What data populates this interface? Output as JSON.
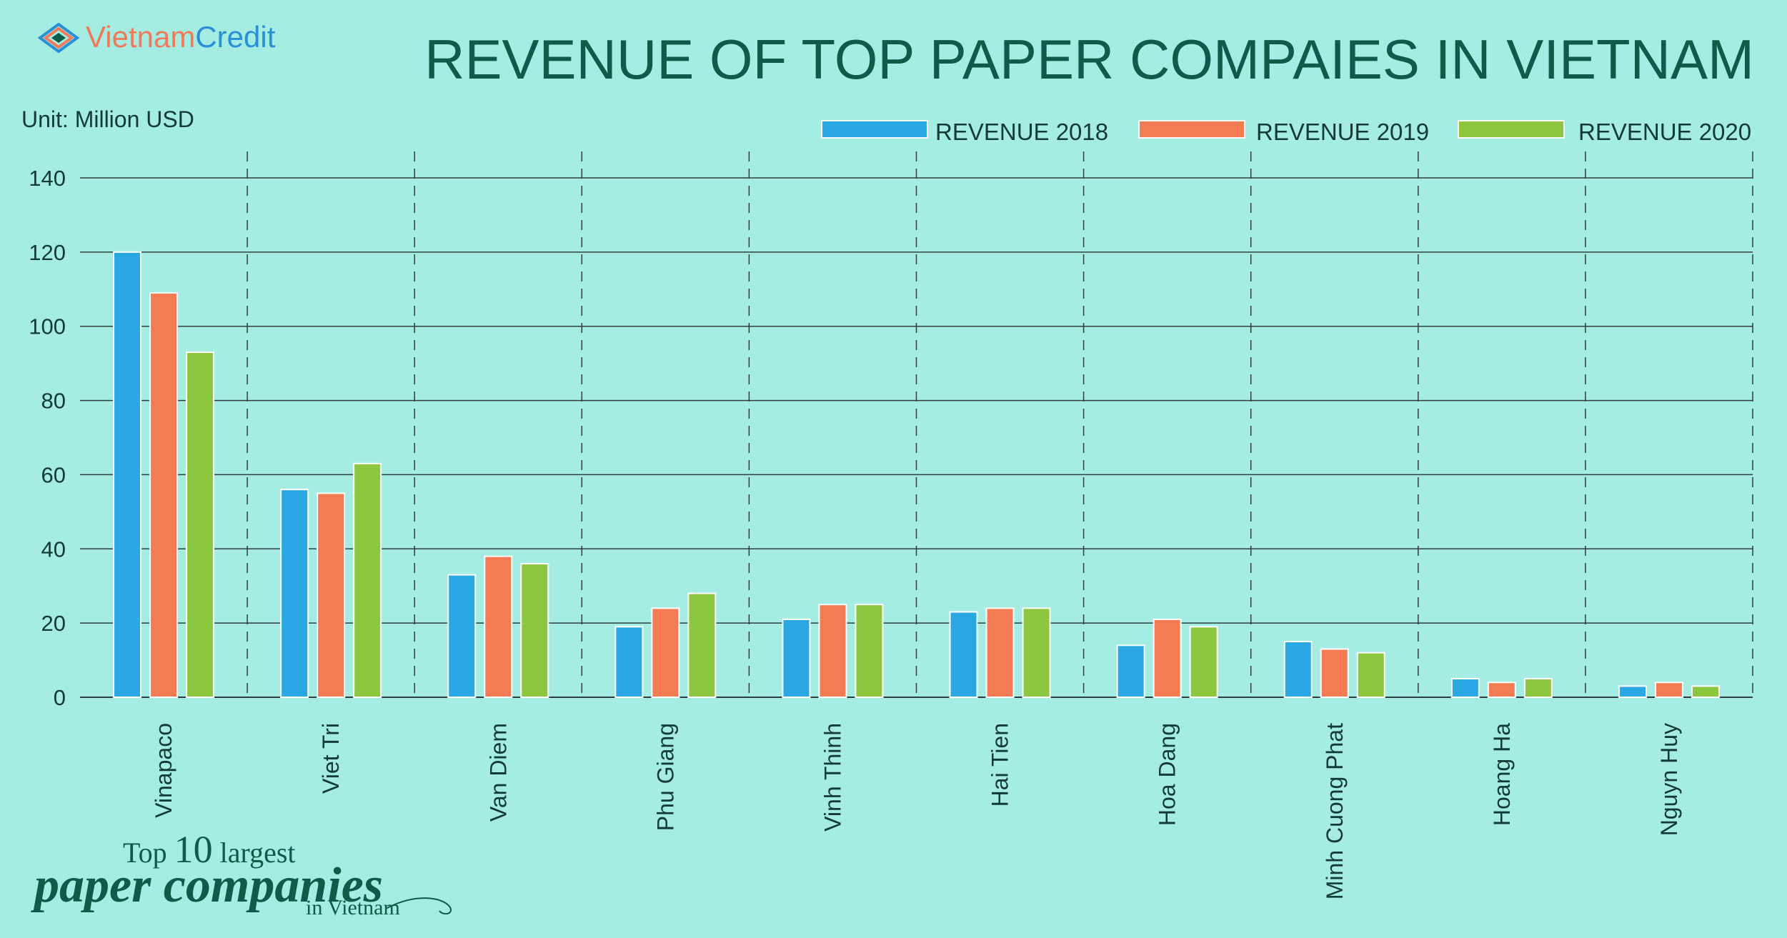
{
  "brand": {
    "name_part1": "Vietnam",
    "name_part2": "Credit",
    "color_dark": "#0f5a49",
    "color_accent": "#f07a5a",
    "color_blue": "#2b8fd6"
  },
  "footer": {
    "line1_a": "Top ",
    "line1_num": "10",
    "line1_b": " largest",
    "line2": "paper companies",
    "line3": "in Vietnam"
  },
  "chart_data": {
    "type": "bar",
    "title": "REVENUE OF TOP PAPER COMPAIES IN VIETNAM",
    "unit_label": "Unit: Million USD",
    "xlabel": "",
    "ylabel": "Million USD",
    "ylim": [
      0,
      140
    ],
    "yticks": [
      0,
      20,
      40,
      60,
      80,
      100,
      120,
      140
    ],
    "grid": true,
    "legend_position": "top-right",
    "categories": [
      "Vinapaco",
      "Viet Tri",
      "Van Diem",
      "Phu Giang",
      "Vinh Thinh",
      "Hai Tien",
      "Hoa Dang",
      "Minh Cuong Phat",
      "Hoang Ha",
      "Nguyn Huy"
    ],
    "series": [
      {
        "name": "REVENUE 2018",
        "color": "#29a8e3",
        "values": [
          120,
          56,
          33,
          19,
          21,
          23,
          14,
          15,
          5,
          3
        ]
      },
      {
        "name": "REVENUE 2019",
        "color": "#f47c55",
        "values": [
          109,
          55,
          38,
          24,
          25,
          24,
          21,
          13,
          4,
          4
        ]
      },
      {
        "name": "REVENUE 2020",
        "color": "#8dc63f",
        "values": [
          93,
          63,
          36,
          28,
          25,
          24,
          19,
          12,
          5,
          3
        ]
      }
    ]
  }
}
